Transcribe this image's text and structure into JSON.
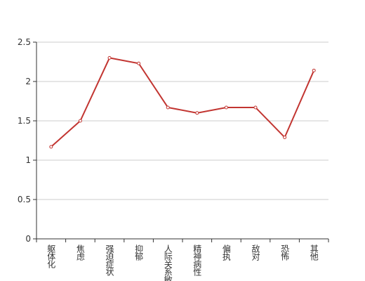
{
  "chart_data": {
    "type": "line",
    "categories": [
      "躯体化",
      "焦虑",
      "强迫症状",
      "抑郁",
      "人际关系敏感",
      "精神病性",
      "偏执",
      "敌对",
      "恐怖",
      "其他"
    ],
    "values": [
      1.17,
      1.5,
      2.3,
      2.23,
      1.67,
      1.6,
      1.67,
      1.67,
      1.29,
      2.14
    ],
    "color": "#c23531",
    "ylim": [
      0,
      2.5
    ],
    "yticks": [
      0,
      0.5,
      1,
      1.5,
      2,
      2.5
    ],
    "grid": true
  }
}
